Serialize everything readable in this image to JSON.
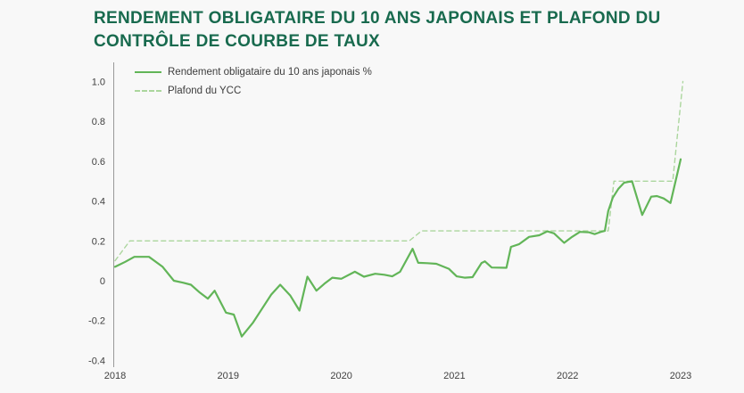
{
  "title": {
    "lines": [
      "RENDEMENT OBLIGATAIRE DU 10 ANS JAPONAIS ET PLAFOND DU",
      "CONTRÔLE DE COURBE DE TAUX"
    ],
    "color": "#186a4e"
  },
  "chart_data": {
    "type": "line",
    "title": "RENDEMENT OBLIGATAIRE DU 10 ANS JAPONAIS ET PLAFOND DU CONTRÔLE DE COURBE DE TAUX",
    "xlabel": "",
    "ylabel": "",
    "grid": false,
    "legend_position": "top-left",
    "x_axis": {
      "ticks": [
        2018,
        2019,
        2020,
        2021,
        2022,
        2023
      ],
      "labels": [
        "2018",
        "2019",
        "2020",
        "2021",
        "2022",
        "2023"
      ],
      "range": [
        2018,
        2023.05
      ]
    },
    "y_axis": {
      "ticks": [
        1.0,
        0.8,
        0.6,
        0.4,
        0.2,
        0,
        -0.2,
        -0.4
      ],
      "labels": [
        "1.0",
        "0.8",
        "0.6",
        "0.4",
        "0.2",
        "0",
        "-0.2",
        "-0.4"
      ],
      "range": [
        -0.43,
        1.1
      ],
      "unit": "%"
    },
    "series": [
      {
        "name": "Rendement obligataire du 10 ans japonais %",
        "style": "solid",
        "color": "#62b558",
        "points": [
          [
            2018.0,
            0.07
          ],
          [
            2018.09,
            0.095
          ],
          [
            2018.17,
            0.12
          ],
          [
            2018.3,
            0.12
          ],
          [
            2018.42,
            0.07
          ],
          [
            2018.52,
            0.0
          ],
          [
            2018.6,
            -0.01
          ],
          [
            2018.67,
            -0.02
          ],
          [
            2018.75,
            -0.06
          ],
          [
            2018.82,
            -0.09
          ],
          [
            2018.88,
            -0.05
          ],
          [
            2018.98,
            -0.16
          ],
          [
            2019.05,
            -0.17
          ],
          [
            2019.12,
            -0.28
          ],
          [
            2019.22,
            -0.21
          ],
          [
            2019.3,
            -0.14
          ],
          [
            2019.38,
            -0.07
          ],
          [
            2019.46,
            -0.02
          ],
          [
            2019.55,
            -0.075
          ],
          [
            2019.63,
            -0.15
          ],
          [
            2019.7,
            0.02
          ],
          [
            2019.78,
            -0.05
          ],
          [
            2019.85,
            -0.015
          ],
          [
            2019.92,
            0.015
          ],
          [
            2020.0,
            0.01
          ],
          [
            2020.12,
            0.045
          ],
          [
            2020.2,
            0.02
          ],
          [
            2020.3,
            0.035
          ],
          [
            2020.38,
            0.03
          ],
          [
            2020.45,
            0.022
          ],
          [
            2020.52,
            0.045
          ],
          [
            2020.63,
            0.16
          ],
          [
            2020.68,
            0.09
          ],
          [
            2020.76,
            0.088
          ],
          [
            2020.84,
            0.085
          ],
          [
            2020.95,
            0.06
          ],
          [
            2021.02,
            0.022
          ],
          [
            2021.09,
            0.015
          ],
          [
            2021.16,
            0.018
          ],
          [
            2021.24,
            0.089
          ],
          [
            2021.27,
            0.097
          ],
          [
            2021.33,
            0.066
          ],
          [
            2021.46,
            0.065
          ],
          [
            2021.5,
            0.17
          ],
          [
            2021.57,
            0.183
          ],
          [
            2021.66,
            0.22
          ],
          [
            2021.75,
            0.228
          ],
          [
            2021.82,
            0.248
          ],
          [
            2021.88,
            0.238
          ],
          [
            2021.97,
            0.19
          ],
          [
            2022.04,
            0.22
          ],
          [
            2022.11,
            0.245
          ],
          [
            2022.19,
            0.243
          ],
          [
            2022.24,
            0.234
          ],
          [
            2022.3,
            0.246
          ],
          [
            2022.33,
            0.25
          ],
          [
            2022.36,
            0.35
          ],
          [
            2022.4,
            0.417
          ],
          [
            2022.45,
            0.462
          ],
          [
            2022.5,
            0.492
          ],
          [
            2022.57,
            0.5
          ],
          [
            2022.66,
            0.33
          ],
          [
            2022.74,
            0.422
          ],
          [
            2022.79,
            0.425
          ],
          [
            2022.85,
            0.413
          ],
          [
            2022.91,
            0.39
          ],
          [
            2023.0,
            0.61
          ]
        ]
      },
      {
        "name": "Plafond du YCC",
        "style": "dashed",
        "color": "#abd69d",
        "points": [
          [
            2018.0,
            0.1
          ],
          [
            2018.13,
            0.2
          ],
          [
            2020.6,
            0.2
          ],
          [
            2020.71,
            0.25
          ],
          [
            2022.36,
            0.25
          ],
          [
            2022.41,
            0.5
          ],
          [
            2022.93,
            0.5
          ],
          [
            2023.02,
            1.0
          ]
        ]
      }
    ]
  }
}
